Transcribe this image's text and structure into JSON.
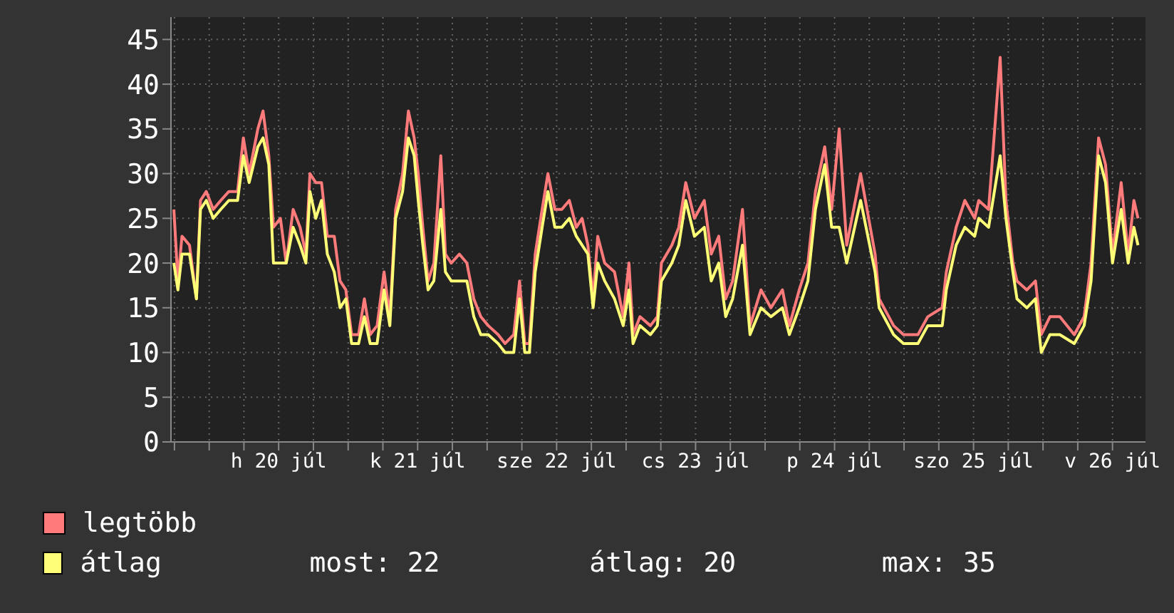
{
  "chart_data": {
    "type": "line",
    "legend": "bottom left",
    "grid": true,
    "marker": "none",
    "line_style": "solid",
    "xlim": [
      "--07-19T17:24",
      "--07-26T17:42"
    ],
    "xticks": [
      {
        "value": "--07-19T18:00",
        "label": null
      },
      {
        "value": "--07-20T00:00",
        "label": null
      },
      {
        "value": "--07-20T06:00",
        "label": null
      },
      {
        "value": "--07-20T12:00",
        "label": "h 20 júl"
      },
      {
        "value": "--07-20T18:00",
        "label": null
      },
      {
        "value": "--07-21T00:00",
        "label": null
      },
      {
        "value": "--07-21T06:00",
        "label": null
      },
      {
        "value": "--07-21T12:00",
        "label": "k 21 júl"
      },
      {
        "value": "--07-21T18:00",
        "label": null
      },
      {
        "value": "--07-22T00:00",
        "label": null
      },
      {
        "value": "--07-22T06:00",
        "label": null
      },
      {
        "value": "--07-22T12:00",
        "label": "sze 22 júl"
      },
      {
        "value": "--07-22T18:00",
        "label": null
      },
      {
        "value": "--07-23T00:00",
        "label": null
      },
      {
        "value": "--07-23T06:00",
        "label": null
      },
      {
        "value": "--07-23T12:00",
        "label": "cs 23 júl"
      },
      {
        "value": "--07-23T18:00",
        "label": null
      },
      {
        "value": "--07-24T00:00",
        "label": null
      },
      {
        "value": "--07-24T06:00",
        "label": null
      },
      {
        "value": "--07-24T12:00",
        "label": "p 24 júl"
      },
      {
        "value": "--07-24T18:00",
        "label": null
      },
      {
        "value": "--07-25T00:00",
        "label": null
      },
      {
        "value": "--07-25T06:00",
        "label": null
      },
      {
        "value": "--07-25T12:00",
        "label": "szo 25 júl"
      },
      {
        "value": "--07-25T18:00",
        "label": null
      },
      {
        "value": "--07-26T00:00",
        "label": null
      },
      {
        "value": "--07-26T06:00",
        "label": null
      },
      {
        "value": "--07-26T12:00",
        "label": "v 26 júl"
      }
    ],
    "ylim": [
      0,
      47.5
    ],
    "yticks": [
      0,
      5,
      10,
      15,
      20,
      25,
      30,
      35,
      40,
      45
    ],
    "x": [
      "--07-19T17:54",
      "--07-19T18:36",
      "--07-19T19:18",
      "--07-19T20:36",
      "--07-19T21:48",
      "--07-19T22:30",
      "--07-19T23:30",
      "--07-20T00:42",
      "--07-20T02:00",
      "--07-20T03:24",
      "--07-20T04:54",
      "--07-20T05:54",
      "--07-20T06:54",
      "--07-20T08:24",
      "--07-20T09:18",
      "--07-20T10:18",
      "--07-20T11:06",
      "--07-20T12:18",
      "--07-20T13:18",
      "--07-20T14:30",
      "--07-20T15:42",
      "--07-20T16:42",
      "--07-20T17:24",
      "--07-20T18:24",
      "--07-20T19:24",
      "--07-20T20:24",
      "--07-20T21:36",
      "--07-20T22:36",
      "--07-20T23:36",
      "--07-21T00:36",
      "--07-21T01:48",
      "--07-21T02:48",
      "--07-21T03:48",
      "--07-21T05:00",
      "--07-21T06:12",
      "--07-21T07:12",
      "--07-21T08:12",
      "--07-21T09:24",
      "--07-21T10:24",
      "--07-21T11:24",
      "--07-21T12:06",
      "--07-21T12:54",
      "--07-21T13:48",
      "--07-21T14:48",
      "--07-21T16:00",
      "--07-21T16:48",
      "--07-21T17:48",
      "--07-21T19:12",
      "--07-21T20:30",
      "--07-21T21:42",
      "--07-21T22:54",
      "--07-22T00:12",
      "--07-22T01:54",
      "--07-22T03:06",
      "--07-22T04:36",
      "--07-22T05:36",
      "--07-22T06:30",
      "--07-22T07:18",
      "--07-22T08:18",
      "--07-22T09:30",
      "--07-22T10:30",
      "--07-22T11:42",
      "--07-22T12:54",
      "--07-22T14:12",
      "--07-22T15:24",
      "--07-22T16:24",
      "--07-22T17:24",
      "--07-22T18:18",
      "--07-22T19:06",
      "--07-22T20:18",
      "--07-22T22:00",
      "--07-22T23:30",
      "--07-23T00:30",
      "--07-23T01:12",
      "--07-23T02:24",
      "--07-23T04:12",
      "--07-23T05:24",
      "--07-23T06:06",
      "--07-23T07:54",
      "--07-23T09:06",
      "--07-23T10:18",
      "--07-23T11:48",
      "--07-23T13:30",
      "--07-23T14:42",
      "--07-23T16:00",
      "--07-23T17:12",
      "--07-23T18:24",
      "--07-23T20:06",
      "--07-23T21:24",
      "--07-23T23:18",
      "--07-24T01:00",
      "--07-24T03:00",
      "--07-24T04:12",
      "--07-24T05:54",
      "--07-24T07:24",
      "--07-24T08:42",
      "--07-24T10:18",
      "--07-24T11:30",
      "--07-24T12:48",
      "--07-24T14:06",
      "--07-24T16:30",
      "--07-24T19:00",
      "--07-24T19:42",
      "--07-24T22:12",
      "--07-24T23:54",
      "--07-25T02:24",
      "--07-25T04:06",
      "--07-25T06:36",
      "--07-25T07:18",
      "--07-25T09:00",
      "--07-25T10:30",
      "--07-25T12:12",
      "--07-25T12:54",
      "--07-25T14:36",
      "--07-25T16:36",
      "--07-25T17:36",
      "--07-25T18:48",
      "--07-25T19:30",
      "--07-25T21:12",
      "--07-25T22:42",
      "--07-25T23:42",
      "--07-26T01:12",
      "--07-26T02:54",
      "--07-26T05:24",
      "--07-26T07:06",
      "--07-26T08:18",
      "--07-26T09:36",
      "--07-26T10:48",
      "--07-26T12:00",
      "--07-26T13:30",
      "--07-26T14:42",
      "--07-26T15:42",
      "--07-26T16:24"
    ],
    "series": [
      {
        "name": "legtöbb",
        "color": "#ff7b7b",
        "values": [
          26,
          18,
          23,
          22,
          16,
          27,
          28,
          26,
          27,
          28,
          28,
          34,
          30,
          35,
          37,
          32,
          24,
          25,
          20,
          26,
          24,
          21,
          30,
          29,
          29,
          23,
          23,
          18,
          17,
          12,
          12,
          16,
          12,
          13,
          19,
          14,
          26,
          30,
          37,
          34,
          30,
          24,
          18,
          20,
          32,
          21,
          20,
          21,
          20,
          16,
          14,
          13,
          12,
          11,
          12,
          18,
          11,
          11,
          21,
          26,
          30,
          26,
          26,
          27,
          24,
          25,
          22,
          16,
          23,
          20,
          19,
          14,
          20,
          12,
          14,
          13,
          14,
          20,
          22,
          24,
          29,
          25,
          27,
          21,
          23,
          16,
          18,
          26,
          13,
          17,
          15,
          17,
          13,
          17,
          20,
          28,
          33,
          26,
          35,
          22,
          30,
          21,
          16,
          13,
          12,
          12,
          14,
          15,
          19,
          24,
          27,
          25,
          27,
          26,
          43,
          27,
          20,
          18,
          17,
          18,
          12,
          14,
          14,
          12,
          14,
          20,
          34,
          31,
          21,
          29,
          21,
          27,
          25
        ]
      },
      {
        "name": "átlag",
        "color": "#ffff77",
        "values": [
          20,
          17,
          21,
          21,
          16,
          26,
          27,
          25,
          26,
          27,
          27,
          32,
          29,
          33,
          34,
          31,
          20,
          20,
          20,
          24,
          22,
          20,
          28,
          25,
          27,
          21,
          19,
          15,
          16,
          11,
          11,
          14,
          11,
          11,
          17,
          13,
          25,
          28,
          34,
          32,
          27,
          22,
          17,
          18,
          26,
          19,
          18,
          18,
          18,
          14,
          12,
          12,
          11,
          10,
          10,
          16,
          10,
          10,
          19,
          24,
          28,
          24,
          24,
          25,
          23,
          22,
          21,
          15,
          20,
          18,
          16,
          13,
          17,
          11,
          13,
          12,
          13,
          18,
          20,
          22,
          27,
          23,
          24,
          18,
          20,
          14,
          16,
          22,
          12,
          15,
          14,
          15,
          12,
          15,
          18,
          26,
          31,
          24,
          24,
          20,
          27,
          19,
          15,
          12,
          11,
          11,
          13,
          13,
          17,
          22,
          24,
          23,
          25,
          24,
          32,
          25,
          19,
          16,
          15,
          16,
          10,
          12,
          12,
          11,
          13,
          18,
          32,
          29,
          20,
          26,
          20,
          24,
          22
        ]
      }
    ],
    "annotations": [
      "most: 22",
      "átlag: 20",
      "max: 35"
    ]
  }
}
